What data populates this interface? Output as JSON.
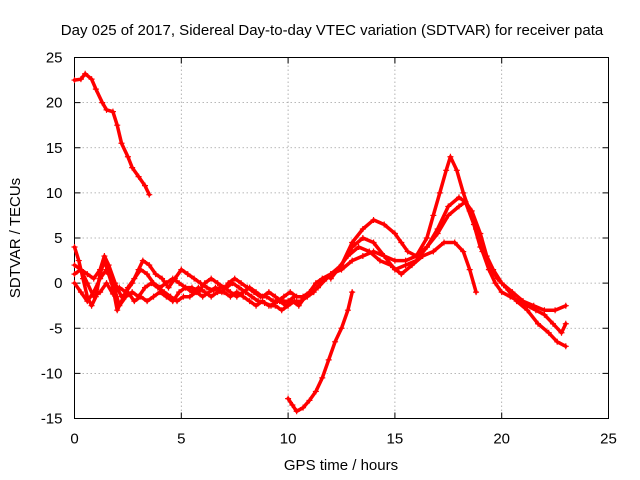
{
  "chart_data": {
    "type": "scatter",
    "title": "Day 025 of 2017, Sidereal Day-to-day VTEC variation (SDTVAR) for receiver pata",
    "xlabel": "GPS time / hours",
    "ylabel": "SDTVAR / TECUs",
    "xlim": [
      0,
      25
    ],
    "ylim": [
      -15,
      25
    ],
    "xticks": [
      0,
      5,
      10,
      15,
      20,
      25
    ],
    "yticks": [
      -15,
      -10,
      -5,
      0,
      5,
      10,
      15,
      20,
      25
    ],
    "grid": true,
    "marker": "+",
    "color": "#ff0000",
    "series": [
      {
        "name": "track-a",
        "points": [
          [
            0,
            22.5
          ],
          [
            0.3,
            22.6
          ],
          [
            0.5,
            23.2
          ],
          [
            0.8,
            22.6
          ],
          [
            1.0,
            21.5
          ],
          [
            1.3,
            20.0
          ],
          [
            1.5,
            19.2
          ],
          [
            1.8,
            19.0
          ],
          [
            2.0,
            17.5
          ],
          [
            2.2,
            15.5
          ],
          [
            2.5,
            14.0
          ],
          [
            2.7,
            12.8
          ],
          [
            3.0,
            11.8
          ],
          [
            3.3,
            10.8
          ],
          [
            3.5,
            9.8
          ]
        ]
      },
      {
        "name": "track-b",
        "points": [
          [
            0,
            2.0
          ],
          [
            0.3,
            1.5
          ],
          [
            0.6,
            0.0
          ],
          [
            0.9,
            -1.5
          ],
          [
            1.2,
            -1.0
          ],
          [
            1.5,
            0.0
          ],
          [
            1.8,
            -1.2
          ],
          [
            2.1,
            -0.5
          ],
          [
            2.4,
            -1.0
          ],
          [
            2.7,
            0.0
          ],
          [
            3.0,
            1.5
          ],
          [
            3.2,
            2.5
          ],
          [
            3.5,
            2.0
          ],
          [
            3.8,
            1.0
          ],
          [
            4.1,
            0.5
          ],
          [
            4.4,
            -0.5
          ],
          [
            4.7,
            0.5
          ],
          [
            5.0,
            1.5
          ],
          [
            5.3,
            1.0
          ],
          [
            5.6,
            0.5
          ],
          [
            5.9,
            0.0
          ],
          [
            6.2,
            -0.5
          ],
          [
            6.5,
            -0.8
          ],
          [
            6.8,
            -0.5
          ],
          [
            7.1,
            -0.5
          ],
          [
            7.4,
            0.0
          ],
          [
            7.7,
            -0.5
          ],
          [
            8.0,
            -1.0
          ],
          [
            8.3,
            -1.5
          ],
          [
            8.6,
            -2.0
          ],
          [
            8.9,
            -2.2
          ],
          [
            9.2,
            -2.5
          ],
          [
            9.5,
            -2.0
          ],
          [
            9.8,
            -1.5
          ],
          [
            10.1,
            -1.0
          ],
          [
            10.4,
            -1.5
          ],
          [
            10.7,
            -1.5
          ],
          [
            11.0,
            -1.0
          ],
          [
            11.3,
            0.0
          ],
          [
            11.6,
            0.5
          ],
          [
            12.0,
            1.0
          ],
          [
            12.5,
            1.5
          ],
          [
            13.0,
            2.5
          ],
          [
            13.5,
            3.0
          ],
          [
            14.0,
            3.5
          ],
          [
            14.5,
            3.0
          ],
          [
            15.0,
            2.5
          ],
          [
            15.5,
            2.5
          ],
          [
            16.0,
            3.0
          ],
          [
            16.5,
            4.0
          ],
          [
            17.0,
            5.5
          ],
          [
            17.5,
            7.5
          ],
          [
            18.0,
            8.5
          ],
          [
            18.3,
            9.0
          ],
          [
            18.6,
            8.0
          ],
          [
            19.0,
            5.5
          ],
          [
            19.3,
            3.0
          ],
          [
            19.6,
            1.5
          ],
          [
            20.0,
            0.0
          ],
          [
            20.5,
            -1.0
          ],
          [
            21.0,
            -2.0
          ],
          [
            21.5,
            -2.5
          ],
          [
            22.0,
            -3.0
          ],
          [
            22.5,
            -3.0
          ],
          [
            23.0,
            -2.5
          ]
        ]
      },
      {
        "name": "track-c",
        "points": [
          [
            0,
            1.0
          ],
          [
            0.3,
            1.5
          ],
          [
            0.6,
            1.0
          ],
          [
            0.9,
            0.5
          ],
          [
            1.2,
            1.5
          ],
          [
            1.4,
            3.0
          ],
          [
            1.6,
            2.0
          ],
          [
            1.9,
            0.0
          ],
          [
            2.2,
            -1.5
          ],
          [
            2.5,
            -1.0
          ],
          [
            2.8,
            -2.0
          ],
          [
            3.1,
            -1.5
          ],
          [
            3.4,
            -2.0
          ],
          [
            3.7,
            -1.5
          ],
          [
            4.0,
            -1.0
          ],
          [
            4.3,
            -1.5
          ],
          [
            4.6,
            -2.0
          ],
          [
            4.9,
            -1.0
          ],
          [
            5.2,
            -0.5
          ],
          [
            5.5,
            -1.0
          ],
          [
            5.8,
            -0.5
          ],
          [
            6.1,
            -1.0
          ],
          [
            6.4,
            -1.5
          ],
          [
            6.7,
            -1.0
          ],
          [
            7.0,
            -1.0
          ],
          [
            7.3,
            -1.5
          ],
          [
            7.6,
            -1.0
          ],
          [
            7.9,
            -1.5
          ],
          [
            8.2,
            -2.0
          ],
          [
            8.5,
            -2.5
          ],
          [
            8.8,
            -2.0
          ],
          [
            9.1,
            -2.5
          ],
          [
            9.4,
            -2.5
          ],
          [
            9.7,
            -3.0
          ],
          [
            10.0,
            -2.5
          ],
          [
            10.3,
            -2.0
          ],
          [
            10.6,
            -2.0
          ],
          [
            10.9,
            -1.5
          ],
          [
            11.2,
            -1.0
          ],
          [
            11.5,
            0.0
          ],
          [
            12.0,
            1.0
          ],
          [
            12.5,
            2.0
          ],
          [
            13.0,
            4.0
          ],
          [
            13.5,
            5.0
          ],
          [
            14.0,
            4.5
          ],
          [
            14.5,
            3.0
          ],
          [
            15.0,
            1.5
          ],
          [
            15.5,
            2.0
          ],
          [
            16.0,
            2.5
          ],
          [
            16.5,
            4.0
          ],
          [
            17.0,
            6.0
          ],
          [
            17.5,
            8.5
          ],
          [
            18.0,
            9.5
          ],
          [
            18.3,
            9.0
          ],
          [
            18.7,
            6.5
          ],
          [
            19.0,
            4.0
          ],
          [
            19.4,
            2.0
          ],
          [
            19.8,
            0.5
          ],
          [
            20.2,
            -0.5
          ],
          [
            20.7,
            -2.0
          ],
          [
            21.2,
            -3.0
          ],
          [
            21.7,
            -4.5
          ],
          [
            22.2,
            -5.5
          ],
          [
            22.6,
            -6.5
          ],
          [
            23.0,
            -7.0
          ]
        ]
      },
      {
        "name": "track-d",
        "points": [
          [
            0,
            0.0
          ],
          [
            0.3,
            -1.0
          ],
          [
            0.6,
            -2.0
          ],
          [
            0.9,
            -1.0
          ],
          [
            1.2,
            0.5
          ],
          [
            1.5,
            1.5
          ],
          [
            1.8,
            0.0
          ],
          [
            2.1,
            -2.5
          ],
          [
            2.4,
            -1.5
          ],
          [
            2.7,
            -1.0
          ],
          [
            3.0,
            -1.5
          ],
          [
            3.3,
            -0.5
          ],
          [
            3.6,
            0.0
          ],
          [
            3.9,
            -0.5
          ],
          [
            4.2,
            -1.0
          ],
          [
            4.5,
            -1.5
          ],
          [
            4.8,
            -2.0
          ],
          [
            5.1,
            -1.5
          ],
          [
            5.4,
            -1.5
          ],
          [
            5.7,
            -1.0
          ],
          [
            6.0,
            -1.5
          ],
          [
            6.3,
            -1.0
          ],
          [
            6.6,
            -0.5
          ],
          [
            6.9,
            -1.0
          ],
          [
            7.2,
            0.0
          ],
          [
            7.5,
            0.5
          ],
          [
            7.8,
            0.0
          ],
          [
            8.1,
            -0.5
          ],
          [
            8.4,
            -1.0
          ],
          [
            8.7,
            -1.5
          ],
          [
            9.0,
            -1.5
          ],
          [
            9.3,
            -2.0
          ],
          [
            9.6,
            -2.0
          ],
          [
            9.9,
            -2.5
          ],
          [
            10.2,
            -2.0
          ],
          [
            10.5,
            -2.5
          ],
          [
            10.8,
            -1.5
          ],
          [
            11.1,
            -1.0
          ],
          [
            11.4,
            -0.5
          ],
          [
            11.8,
            0.5
          ],
          [
            12.3,
            1.5
          ],
          [
            12.8,
            3.0
          ],
          [
            13.3,
            4.0
          ],
          [
            13.8,
            3.5
          ],
          [
            14.3,
            2.5
          ],
          [
            14.8,
            2.0
          ],
          [
            15.3,
            1.0
          ],
          [
            15.8,
            2.0
          ],
          [
            16.3,
            3.0
          ],
          [
            16.8,
            3.5
          ],
          [
            17.3,
            4.5
          ],
          [
            17.8,
            4.5
          ],
          [
            18.2,
            3.5
          ],
          [
            18.5,
            1.5
          ],
          [
            18.8,
            -1.0
          ]
        ]
      },
      {
        "name": "track-e",
        "points": [
          [
            12.0,
            0.5
          ],
          [
            12.5,
            2.0
          ],
          [
            13.0,
            4.5
          ],
          [
            13.5,
            6.0
          ],
          [
            14.0,
            7.0
          ],
          [
            14.5,
            6.5
          ],
          [
            15.0,
            5.5
          ],
          [
            15.3,
            4.5
          ],
          [
            15.6,
            3.5
          ],
          [
            16.0,
            3.0
          ],
          [
            16.5,
            5.0
          ],
          [
            16.8,
            7.5
          ],
          [
            17.1,
            10.0
          ],
          [
            17.4,
            12.5
          ],
          [
            17.6,
            14.0
          ],
          [
            17.9,
            12.5
          ],
          [
            18.2,
            10.0
          ],
          [
            18.5,
            8.0
          ],
          [
            18.8,
            6.0
          ],
          [
            19.1,
            3.5
          ],
          [
            19.4,
            1.5
          ],
          [
            19.7,
            0.0
          ],
          [
            20.0,
            -1.0
          ],
          [
            20.4,
            -1.5
          ],
          [
            20.8,
            -2.0
          ],
          [
            21.2,
            -2.5
          ],
          [
            21.6,
            -3.0
          ],
          [
            22.0,
            -3.5
          ],
          [
            22.4,
            -4.5
          ],
          [
            22.8,
            -5.5
          ],
          [
            23.0,
            -4.5
          ]
        ]
      },
      {
        "name": "track-f",
        "points": [
          [
            0,
            4.0
          ],
          [
            0.2,
            2.5
          ],
          [
            0.4,
            0.5
          ],
          [
            0.6,
            -1.5
          ],
          [
            0.8,
            -2.5
          ],
          [
            1.0,
            -1.5
          ],
          [
            1.2,
            1.0
          ],
          [
            1.4,
            2.5
          ],
          [
            1.6,
            1.0
          ],
          [
            1.8,
            -0.5
          ],
          [
            2.0,
            -3.0
          ],
          [
            2.2,
            -2.0
          ],
          [
            2.5,
            -0.5
          ],
          [
            2.8,
            0.5
          ],
          [
            3.1,
            1.5
          ],
          [
            3.4,
            1.0
          ],
          [
            3.7,
            0.0
          ],
          [
            4.0,
            -0.5
          ],
          [
            4.3,
            0.0
          ],
          [
            4.6,
            0.5
          ],
          [
            4.9,
            0.0
          ],
          [
            5.2,
            -0.5
          ],
          [
            5.5,
            -0.5
          ],
          [
            5.8,
            -1.0
          ],
          [
            6.1,
            0.0
          ],
          [
            6.4,
            0.5
          ],
          [
            6.7,
            0.0
          ],
          [
            7.0,
            -0.5
          ],
          [
            7.3,
            -1.0
          ],
          [
            7.6,
            -1.5
          ],
          [
            7.9,
            -1.0
          ],
          [
            8.2,
            -0.5
          ],
          [
            8.5,
            -1.0
          ],
          [
            8.8,
            -1.5
          ],
          [
            9.1,
            -1.0
          ],
          [
            9.4,
            -1.5
          ],
          [
            9.7,
            -2.0
          ],
          [
            10.0,
            -2.0
          ],
          [
            10.3,
            -1.5
          ]
        ]
      },
      {
        "name": "track-g",
        "points": [
          [
            10.0,
            -12.8
          ],
          [
            10.2,
            -13.5
          ],
          [
            10.4,
            -14.2
          ],
          [
            10.7,
            -13.8
          ],
          [
            11.0,
            -13.0
          ],
          [
            11.3,
            -12.0
          ],
          [
            11.6,
            -10.5
          ],
          [
            11.9,
            -8.5
          ],
          [
            12.2,
            -6.5
          ],
          [
            12.5,
            -5.0
          ],
          [
            12.8,
            -3.0
          ],
          [
            13.0,
            -1.0
          ]
        ]
      }
    ]
  }
}
